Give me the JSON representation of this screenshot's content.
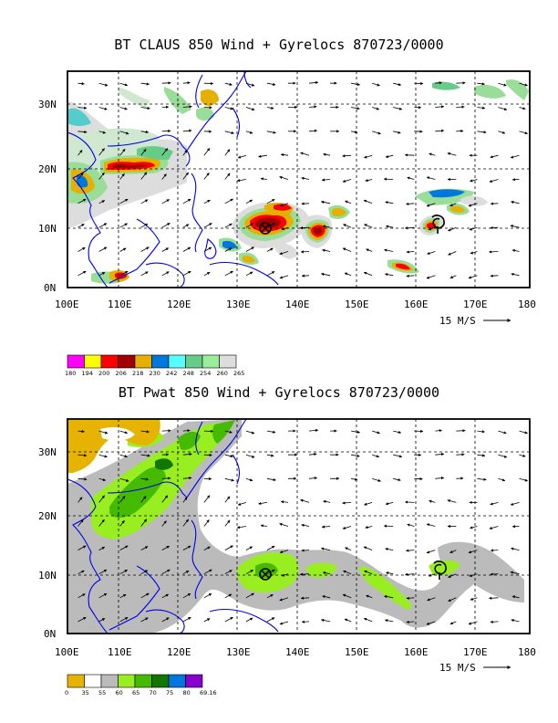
{
  "panel_top": {
    "title": "BT CLAUS 850 Wind + Gyrelocs 870723/0000",
    "x_labels": [
      "100E",
      "110E",
      "120E",
      "130E",
      "140E",
      "150E",
      "160E",
      "170E",
      "180"
    ],
    "y_labels": [
      "30N",
      "20N",
      "10N",
      "0N"
    ],
    "scale_label": "15 M/S",
    "legend": {
      "values": [
        "180",
        "194",
        "200",
        "206",
        "218",
        "230",
        "242",
        "248",
        "254",
        "260",
        "265"
      ],
      "colors": [
        "#ff00ff",
        "#ffff00",
        "#ff0000",
        "#a00000",
        "#e6b000",
        "#0077dd",
        "#55ffff",
        "#66cc88",
        "#99ee99",
        "#dddddd"
      ]
    },
    "gyre_markers": [
      {
        "lon": 134,
        "lat": 10,
        "symbol": "circled-x"
      },
      {
        "lon": 163.5,
        "lat": 10.5,
        "symbol": "spiral"
      }
    ]
  },
  "panel_bottom": {
    "title": "BT Pwat 850 Wind + Gyrelocs 870723/0000",
    "x_labels": [
      "100E",
      "110E",
      "120E",
      "130E",
      "140E",
      "150E",
      "160E",
      "170E",
      "180"
    ],
    "y_labels": [
      "30N",
      "20N",
      "10N",
      "0N"
    ],
    "scale_label": "15 M/S",
    "legend": {
      "values": [
        "0",
        "35",
        "55",
        "60",
        "65",
        "70",
        "75",
        "80",
        "69.16"
      ],
      "colors": [
        "#e6b400",
        "#ffffff",
        "#bbbbbb",
        "#99ee22",
        "#44bb00",
        "#117700",
        "#0077dd",
        "#8800cc"
      ]
    },
    "gyre_markers": [
      {
        "lon": 134,
        "lat": 10,
        "symbol": "circled-x"
      },
      {
        "lon": 163.5,
        "lat": 10.5,
        "symbol": "spiral"
      }
    ]
  }
}
